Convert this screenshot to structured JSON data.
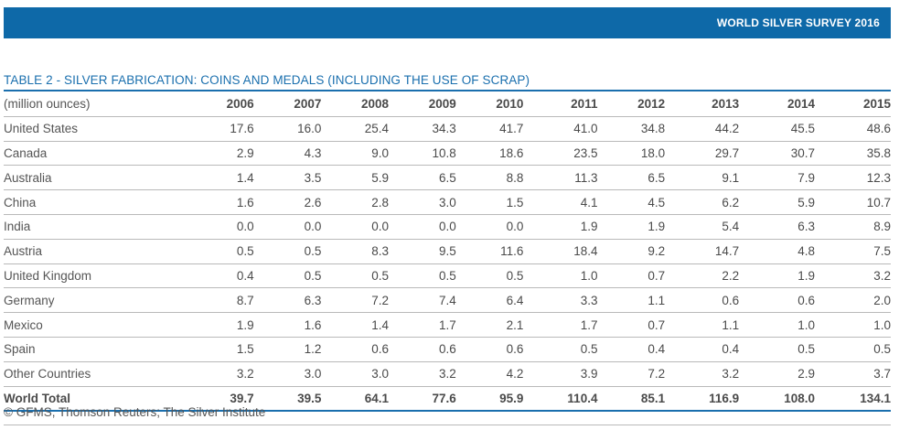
{
  "header": {
    "title": "WORLD SILVER SURVEY 2016",
    "bar_color": "#0e69a8"
  },
  "table": {
    "title": "TABLE 2 - SILVER FABRICATION: COINS AND MEDALS (INCLUDING THE USE OF SCRAP)",
    "unit_label": "(million ounces)",
    "years": [
      "2006",
      "2007",
      "2008",
      "2009",
      "2010",
      "2011",
      "2012",
      "2013",
      "2014",
      "2015"
    ],
    "rows": [
      {
        "country": "United States",
        "values": [
          "17.6",
          "16.0",
          "25.4",
          "34.3",
          "41.7",
          "41.0",
          "34.8",
          "44.2",
          "45.5",
          "48.6"
        ]
      },
      {
        "country": "Canada",
        "values": [
          "2.9",
          "4.3",
          "9.0",
          "10.8",
          "18.6",
          "23.5",
          "18.0",
          "29.7",
          "30.7",
          "35.8"
        ]
      },
      {
        "country": "Australia",
        "values": [
          "1.4",
          "3.5",
          "5.9",
          "6.5",
          "8.8",
          "11.3",
          "6.5",
          "9.1",
          "7.9",
          "12.3"
        ]
      },
      {
        "country": "China",
        "values": [
          "1.6",
          "2.6",
          "2.8",
          "3.0",
          "1.5",
          "4.1",
          "4.5",
          "6.2",
          "5.9",
          "10.7"
        ]
      },
      {
        "country": "India",
        "values": [
          "0.0",
          "0.0",
          "0.0",
          "0.0",
          "0.0",
          "1.9",
          "1.9",
          "5.4",
          "6.3",
          "8.9"
        ]
      },
      {
        "country": "Austria",
        "values": [
          "0.5",
          "0.5",
          "8.3",
          "9.5",
          "11.6",
          "18.4",
          "9.2",
          "14.7",
          "4.8",
          "7.5"
        ]
      },
      {
        "country": "United Kingdom",
        "values": [
          "0.4",
          "0.5",
          "0.5",
          "0.5",
          "0.5",
          "1.0",
          "0.7",
          "2.2",
          "1.9",
          "3.2"
        ]
      },
      {
        "country": "Germany",
        "values": [
          "8.7",
          "6.3",
          "7.2",
          "7.4",
          "6.4",
          "3.3",
          "1.1",
          "0.6",
          "0.6",
          "2.0"
        ]
      },
      {
        "country": "Mexico",
        "values": [
          "1.9",
          "1.6",
          "1.4",
          "1.7",
          "2.1",
          "1.7",
          "0.7",
          "1.1",
          "1.0",
          "1.0"
        ]
      },
      {
        "country": "Spain",
        "values": [
          "1.5",
          "1.2",
          "0.6",
          "0.6",
          "0.6",
          "0.5",
          "0.4",
          "0.4",
          "0.5",
          "0.5"
        ]
      },
      {
        "country": "Other Countries",
        "values": [
          "3.2",
          "3.0",
          "3.0",
          "3.2",
          "4.2",
          "3.9",
          "7.2",
          "3.2",
          "2.9",
          "3.7"
        ]
      }
    ],
    "total": {
      "country": "World Total",
      "values": [
        "39.7",
        "39.5",
        "64.1",
        "77.6",
        "95.9",
        "110.4",
        "85.1",
        "116.9",
        "108.0",
        "134.1"
      ]
    }
  },
  "source": "© GFMS, Thomson Reuters; The Silver Institute"
}
